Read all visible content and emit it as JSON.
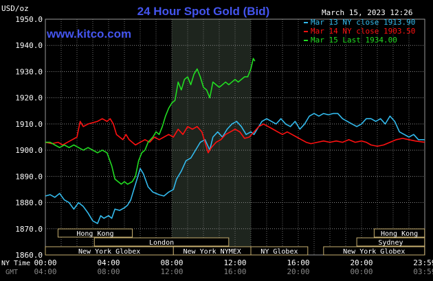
{
  "chart_data": {
    "type": "line",
    "title": "24 Hour Spot Gold (Bid)",
    "watermark": "www.kitco.com",
    "timestamp": "March 15, 2023 12:26",
    "ylabel": "USD/oz",
    "ylim": [
      1860,
      1950
    ],
    "y_ticks": [
      "1950.0",
      "1940.0",
      "1930.0",
      "1920.0",
      "1910.0",
      "1900.0",
      "1890.0",
      "1880.0",
      "1870.0",
      "1860.0"
    ],
    "x_ny_label": "NY Time",
    "x_gmt_label": "GMT",
    "x_ny_ticks": [
      "00:00",
      "04:00",
      "08:00",
      "12:00",
      "16:00",
      "20:00",
      "23:59"
    ],
    "x_gmt_ticks": [
      "04:00",
      "08:00",
      "12:00",
      "16:00",
      "20:00",
      "00:00",
      "03:59"
    ],
    "xlim_hours": [
      0,
      24
    ],
    "grid": true,
    "legend_position": "top-right",
    "highlight_hours": [
      8,
      13
    ],
    "series": [
      {
        "name": "Mar 13 NY close 1913.90",
        "color": "#33bbee",
        "points": [
          [
            0,
            1882.5
          ],
          [
            0.3,
            1883
          ],
          [
            0.6,
            1882
          ],
          [
            0.9,
            1883.5
          ],
          [
            1.2,
            1881
          ],
          [
            1.5,
            1880
          ],
          [
            1.8,
            1877.5
          ],
          [
            2.1,
            1880
          ],
          [
            2.4,
            1878.5
          ],
          [
            2.7,
            1876
          ],
          [
            3.0,
            1873
          ],
          [
            3.3,
            1872
          ],
          [
            3.5,
            1875
          ],
          [
            3.7,
            1874
          ],
          [
            4.0,
            1875
          ],
          [
            4.2,
            1874
          ],
          [
            4.4,
            1877.5
          ],
          [
            4.7,
            1877
          ],
          [
            5.0,
            1878
          ],
          [
            5.2,
            1879
          ],
          [
            5.4,
            1881
          ],
          [
            5.6,
            1885
          ],
          [
            5.8,
            1889
          ],
          [
            6.0,
            1893
          ],
          [
            6.2,
            1891
          ],
          [
            6.5,
            1886
          ],
          [
            6.8,
            1884
          ],
          [
            7.2,
            1883
          ],
          [
            7.5,
            1882.5
          ],
          [
            7.8,
            1884
          ],
          [
            8.1,
            1885
          ],
          [
            8.3,
            1889
          ],
          [
            8.6,
            1892
          ],
          [
            8.9,
            1896
          ],
          [
            9.2,
            1897
          ],
          [
            9.5,
            1900
          ],
          [
            9.8,
            1903
          ],
          [
            10.1,
            1904
          ],
          [
            10.4,
            1900
          ],
          [
            10.6,
            1905
          ],
          [
            10.9,
            1907
          ],
          [
            11.2,
            1905
          ],
          [
            11.5,
            1908
          ],
          [
            11.8,
            1910
          ],
          [
            12.1,
            1911
          ],
          [
            12.4,
            1909
          ],
          [
            12.7,
            1906
          ],
          [
            13.0,
            1907
          ],
          [
            13.2,
            1906
          ],
          [
            13.4,
            1908
          ],
          [
            13.7,
            1911
          ],
          [
            14.0,
            1912
          ],
          [
            14.3,
            1911
          ],
          [
            14.6,
            1910
          ],
          [
            14.9,
            1912
          ],
          [
            15.2,
            1910
          ],
          [
            15.5,
            1909
          ],
          [
            15.8,
            1911
          ],
          [
            16.1,
            1908
          ],
          [
            16.4,
            1910
          ],
          [
            16.7,
            1913
          ],
          [
            17.0,
            1914
          ],
          [
            17.3,
            1913
          ],
          [
            17.6,
            1914
          ],
          [
            17.9,
            1913.5
          ],
          [
            18.2,
            1914
          ],
          [
            18.5,
            1914
          ],
          [
            18.8,
            1912
          ],
          [
            19.1,
            1911
          ],
          [
            19.4,
            1910
          ],
          [
            19.7,
            1909
          ],
          [
            20.0,
            1910
          ],
          [
            20.3,
            1912
          ],
          [
            20.6,
            1912
          ],
          [
            20.9,
            1911
          ],
          [
            21.2,
            1912
          ],
          [
            21.5,
            1910
          ],
          [
            21.8,
            1913
          ],
          [
            22.1,
            1911
          ],
          [
            22.4,
            1907
          ],
          [
            22.7,
            1906
          ],
          [
            23.0,
            1905
          ],
          [
            23.3,
            1906
          ],
          [
            23.6,
            1904
          ],
          [
            23.99,
            1904
          ]
        ]
      },
      {
        "name": "Mar 14 NY close 1903.50",
        "color": "#ff1111",
        "points": [
          [
            0,
            1903
          ],
          [
            0.4,
            1902.5
          ],
          [
            0.8,
            1903
          ],
          [
            1.1,
            1902
          ],
          [
            1.4,
            1903
          ],
          [
            1.7,
            1904
          ],
          [
            2.0,
            1905
          ],
          [
            2.2,
            1911
          ],
          [
            2.4,
            1909
          ],
          [
            2.7,
            1910
          ],
          [
            3.0,
            1910.5
          ],
          [
            3.3,
            1911
          ],
          [
            3.6,
            1912
          ],
          [
            3.9,
            1911
          ],
          [
            4.1,
            1912
          ],
          [
            4.3,
            1910
          ],
          [
            4.5,
            1906
          ],
          [
            4.7,
            1905
          ],
          [
            4.9,
            1904
          ],
          [
            5.1,
            1906
          ],
          [
            5.3,
            1904
          ],
          [
            5.5,
            1903
          ],
          [
            5.7,
            1902
          ],
          [
            6.0,
            1903
          ],
          [
            6.3,
            1904
          ],
          [
            6.6,
            1903
          ],
          [
            6.9,
            1905
          ],
          [
            7.2,
            1904
          ],
          [
            7.5,
            1905
          ],
          [
            7.8,
            1906
          ],
          [
            8.1,
            1905
          ],
          [
            8.4,
            1908
          ],
          [
            8.7,
            1906
          ],
          [
            9.0,
            1909
          ],
          [
            9.3,
            1908
          ],
          [
            9.6,
            1909
          ],
          [
            9.9,
            1907
          ],
          [
            10.1,
            1903
          ],
          [
            10.3,
            1899
          ],
          [
            10.5,
            1901
          ],
          [
            10.8,
            1903
          ],
          [
            11.1,
            1904
          ],
          [
            11.4,
            1906
          ],
          [
            11.7,
            1907
          ],
          [
            12.0,
            1908
          ],
          [
            12.3,
            1907
          ],
          [
            12.6,
            1904.5
          ],
          [
            12.9,
            1905
          ],
          [
            13.2,
            1907
          ],
          [
            13.5,
            1909
          ],
          [
            13.8,
            1910
          ],
          [
            14.1,
            1909
          ],
          [
            14.4,
            1908
          ],
          [
            14.7,
            1907
          ],
          [
            15.0,
            1906
          ],
          [
            15.3,
            1907
          ],
          [
            15.6,
            1906
          ],
          [
            15.9,
            1905
          ],
          [
            16.2,
            1904
          ],
          [
            16.5,
            1903
          ],
          [
            16.8,
            1902.5
          ],
          [
            17.2,
            1903
          ],
          [
            17.6,
            1903.5
          ],
          [
            18.0,
            1903
          ],
          [
            18.4,
            1903.5
          ],
          [
            18.8,
            1903
          ],
          [
            19.2,
            1904
          ],
          [
            19.6,
            1903
          ],
          [
            20.0,
            1903.5
          ],
          [
            20.3,
            1903
          ],
          [
            20.6,
            1902
          ],
          [
            21.0,
            1901.5
          ],
          [
            21.4,
            1902
          ],
          [
            21.8,
            1903
          ],
          [
            22.2,
            1904
          ],
          [
            22.6,
            1904.5
          ],
          [
            23.0,
            1904
          ],
          [
            23.4,
            1903.5
          ],
          [
            23.99,
            1903
          ]
        ]
      },
      {
        "name": "Mar 15 Last 1934.00",
        "color": "#22dd22",
        "points": [
          [
            0,
            1903
          ],
          [
            0.3,
            1903
          ],
          [
            0.6,
            1902
          ],
          [
            0.9,
            1901
          ],
          [
            1.2,
            1902
          ],
          [
            1.5,
            1901
          ],
          [
            1.8,
            1902
          ],
          [
            2.1,
            1901
          ],
          [
            2.4,
            1900
          ],
          [
            2.7,
            1901
          ],
          [
            3.0,
            1900
          ],
          [
            3.3,
            1899
          ],
          [
            3.6,
            1900
          ],
          [
            3.9,
            1899
          ],
          [
            4.2,
            1894
          ],
          [
            4.4,
            1889
          ],
          [
            4.6,
            1888
          ],
          [
            4.8,
            1887
          ],
          [
            5.0,
            1888
          ],
          [
            5.2,
            1887
          ],
          [
            5.5,
            1888
          ],
          [
            5.7,
            1890
          ],
          [
            5.9,
            1896
          ],
          [
            6.1,
            1899
          ],
          [
            6.3,
            1900
          ],
          [
            6.5,
            1903
          ],
          [
            6.8,
            1905
          ],
          [
            7.0,
            1907
          ],
          [
            7.2,
            1906
          ],
          [
            7.4,
            1909
          ],
          [
            7.6,
            1913
          ],
          [
            7.8,
            1916
          ],
          [
            8.0,
            1918
          ],
          [
            8.2,
            1919
          ],
          [
            8.4,
            1926
          ],
          [
            8.6,
            1923
          ],
          [
            8.8,
            1927
          ],
          [
            9.0,
            1928
          ],
          [
            9.2,
            1925
          ],
          [
            9.4,
            1929
          ],
          [
            9.6,
            1931
          ],
          [
            9.8,
            1928
          ],
          [
            10.0,
            1924
          ],
          [
            10.2,
            1923
          ],
          [
            10.4,
            1920
          ],
          [
            10.6,
            1926
          ],
          [
            10.8,
            1925
          ],
          [
            11.0,
            1924
          ],
          [
            11.2,
            1925
          ],
          [
            11.4,
            1926
          ],
          [
            11.6,
            1925
          ],
          [
            11.8,
            1926
          ],
          [
            12.0,
            1927
          ],
          [
            12.2,
            1926
          ],
          [
            12.4,
            1927
          ],
          [
            12.6,
            1928
          ],
          [
            12.8,
            1928
          ],
          [
            13.0,
            1931
          ],
          [
            13.15,
            1935
          ],
          [
            13.25,
            1934
          ]
        ]
      }
    ],
    "sessions": [
      {
        "label": "Hong Kong",
        "start": 0.8,
        "end": 5.5
      },
      {
        "label": "Hong Kong",
        "start": 20.8,
        "end": 23.99
      },
      {
        "label": "London",
        "start": 3.1,
        "end": 11.6
      },
      {
        "label": "Sydney",
        "start": 19.7,
        "end": 23.99
      },
      {
        "label": "New York Globex",
        "start": 0,
        "end": 8.1
      },
      {
        "label": "New York NYMEX",
        "start": 8.1,
        "end": 13.0
      },
      {
        "label": "NY Globex",
        "start": 13.0,
        "end": 16.6
      },
      {
        "label": "New York Globex",
        "start": 17.6,
        "end": 23.99
      }
    ]
  }
}
